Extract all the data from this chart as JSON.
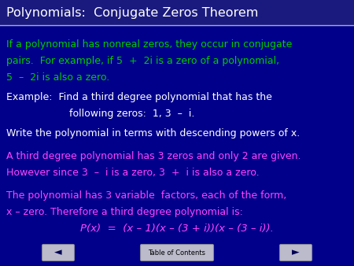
{
  "background_color": "#00008B",
  "title": "Polynomials:  Conjugate Zeros Theorem",
  "title_color": "#FFFFFF",
  "title_fontsize": 11.5,
  "title_bg_color": "#1A1A7E",
  "separator_color": "#AAAACC",
  "green_color": "#00CC00",
  "magenta_color": "#FF44FF",
  "white_color": "#FFFFFF",
  "font_size": 9.0,
  "toc_label": "Table of Contents",
  "green_lines": [
    "If a polynomial has nonreal zeros, they occur in conjugate",
    "pairs.  For example, if 5  +  2i is a zero of a polynomial,",
    "5  –  2i is also a zero."
  ],
  "white_lines_example": [
    "Example:  Find a third degree polynomial that has the",
    "                    following zeros:  1, 3  –  i."
  ],
  "white_line_write": "Write the polynomial in terms with descending powers of x.",
  "magenta_lines_1": [
    "A third degree polynomial has 3 zeros and only 2 are given.",
    "However since 3  –  i is a zero, 3  +  i is also a zero."
  ],
  "magenta_lines_2": [
    "The polynomial has 3 variable  factors, each of the form,",
    "x – zero. Therefore a third degree polynomial is:"
  ],
  "formula_line": "P(x)  =  (x – 1)(x – (3 + i))(x – (3 – i))."
}
